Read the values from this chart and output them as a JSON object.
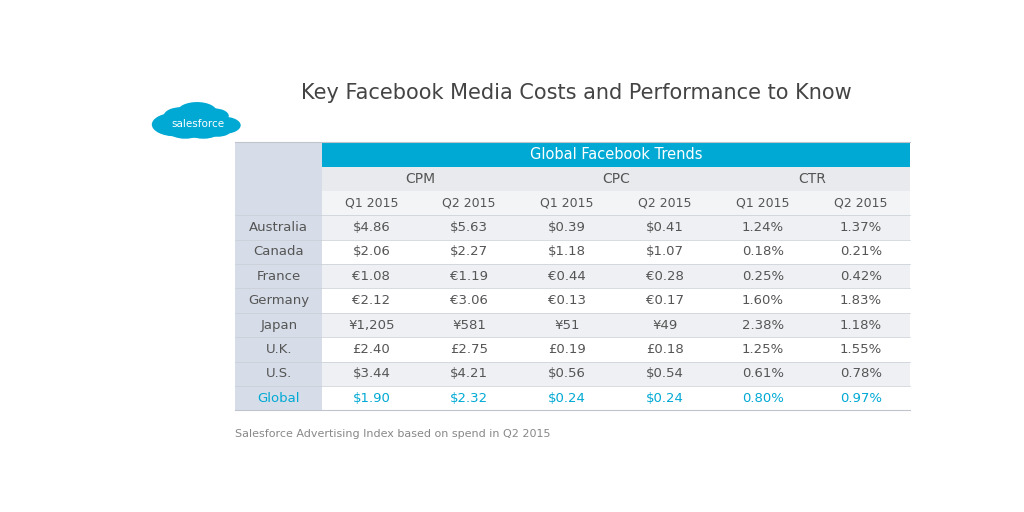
{
  "title": "Key Facebook Media Costs and Performance to Know",
  "header_banner": "Global Facebook Trends",
  "header_banner_color": "#00A9D4",
  "header_banner_text_color": "#ffffff",
  "col_groups": [
    "CPM",
    "CPC",
    "CTR"
  ],
  "col_subheaders": [
    "Q1 2015",
    "Q2 2015",
    "Q1 2015",
    "Q2 2015",
    "Q1 2015",
    "Q2 2015"
  ],
  "row_labels": [
    "Australia",
    "Canada",
    "France",
    "Germany",
    "Japan",
    "U.K.",
    "U.S.",
    "Global"
  ],
  "row_label_color_last": "#00A9D4",
  "data": [
    [
      "$4.86",
      "$5.63",
      "$0.39",
      "$0.41",
      "1.24%",
      "1.37%"
    ],
    [
      "$2.06",
      "$2.27",
      "$1.18",
      "$1.07",
      "0.18%",
      "0.21%"
    ],
    [
      "€1.08",
      "€1.19",
      "€0.44",
      "€0.28",
      "0.25%",
      "0.42%"
    ],
    [
      "€2.12",
      "€3.06",
      "€0.13",
      "€0.17",
      "1.60%",
      "1.83%"
    ],
    [
      "¥1,205",
      "¥581",
      "¥51",
      "¥49",
      "2.38%",
      "1.18%"
    ],
    [
      "£2.40",
      "£2.75",
      "£0.19",
      "£0.18",
      "1.25%",
      "1.55%"
    ],
    [
      "$3.44",
      "$4.21",
      "$0.56",
      "$0.54",
      "0.61%",
      "0.78%"
    ],
    [
      "$1.90",
      "$2.32",
      "$0.24",
      "$0.24",
      "0.80%",
      "0.97%"
    ]
  ],
  "data_color_last": "#00A9D4",
  "country_col_bg": "#d6dde8",
  "odd_row_bg": "#eef0f3",
  "even_row_bg": "#ffffff",
  "header_group_bg": "#e8eaed",
  "header_subrow_bg": "#f2f4f6",
  "footnote": "Salesforce Advertising Index based on spend in Q2 2015",
  "salesforce_cloud_color": "#00A9D4",
  "salesforce_text_color": "#ffffff",
  "title_color": "#444444",
  "data_text_color": "#555555",
  "header_text_color": "#555555"
}
